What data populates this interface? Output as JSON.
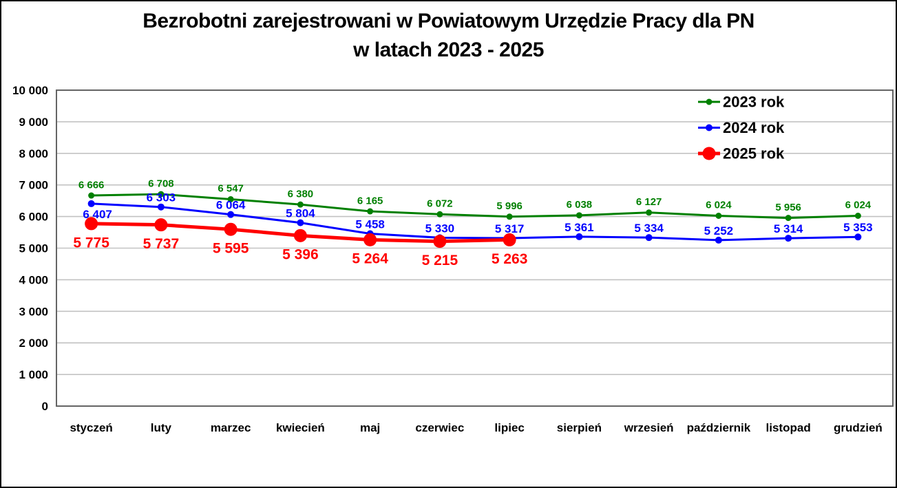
{
  "title": {
    "line1": "Bezrobotni zarejestrowani w Powiatowym Urzędzie Pracy dla PN",
    "line2": "w latach 2023 - 2025"
  },
  "chart_data": {
    "type": "line",
    "title": "Bezrobotni zarejestrowani w Powiatowym Urzędzie Pracy dla PN w latach 2023 - 2025",
    "categories": [
      "styczeń",
      "luty",
      "marzec",
      "kwiecień",
      "maj",
      "czerwiec",
      "lipiec",
      "sierpień",
      "wrzesień",
      "październik",
      "listopad",
      "grudzień"
    ],
    "xlabel": "",
    "ylabel": "",
    "ylim": [
      0,
      10000
    ],
    "ytick_step": 1000,
    "ytick_labels": [
      "0",
      "1 000",
      "2 000",
      "3 000",
      "4 000",
      "5 000",
      "6 000",
      "7 000",
      "8 000",
      "9 000",
      "10 000"
    ],
    "grid": "horizontal",
    "legend_position": "top-right-inside",
    "series": [
      {
        "name": "2023 rok",
        "color": "#008000",
        "values": [
          6666,
          6708,
          6547,
          6380,
          6165,
          6072,
          5996,
          6038,
          6127,
          6024,
          5956,
          6024
        ],
        "labels": [
          "6 666",
          "6 708",
          "6 547",
          "6 380",
          "6 165",
          "6 072",
          "5 996",
          "6 038",
          "6 127",
          "6 024",
          "5 956",
          "6 024"
        ]
      },
      {
        "name": "2024 rok",
        "color": "#0000ff",
        "values": [
          6407,
          6303,
          6064,
          5804,
          5458,
          5330,
          5317,
          5361,
          5334,
          5252,
          5314,
          5353
        ],
        "labels": [
          "6 407",
          "6 303",
          "6 064",
          "5 804",
          "5 458",
          "5 330",
          "5 317",
          "5 361",
          "5 334",
          "5 252",
          "5 314",
          "5 353"
        ]
      },
      {
        "name": "2025 rok",
        "color": "#ff0000",
        "values": [
          5775,
          5737,
          5595,
          5396,
          5264,
          5215,
          5263
        ],
        "labels": [
          "5 775",
          "5 737",
          "5 595",
          "5 396",
          "5 264",
          "5 215",
          "5 263"
        ]
      }
    ]
  }
}
